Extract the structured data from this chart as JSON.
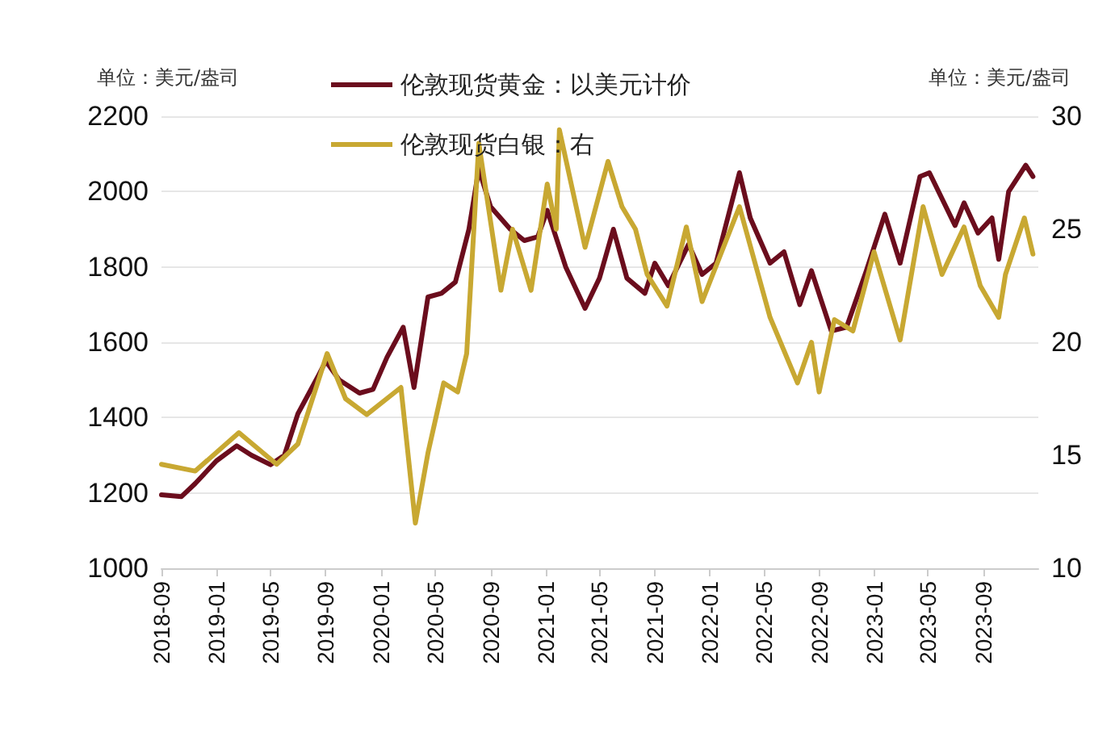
{
  "chart_data": {
    "type": "line",
    "ylabel": "单位：美元/盎司",
    "y2label": "单位：美元/盎司",
    "xlim": [
      "2018-09-01",
      "2024-01-01"
    ],
    "xticks": [
      {
        "value": "2018-09-01",
        "label": "2018-09"
      },
      {
        "value": "2019-01-01",
        "label": "2019-01"
      },
      {
        "value": "2019-05-01",
        "label": "2019-05"
      },
      {
        "value": "2019-09-01",
        "label": "2019-09"
      },
      {
        "value": "2020-01-01",
        "label": "2020-01"
      },
      {
        "value": "2020-05-01",
        "label": "2020-05"
      },
      {
        "value": "2020-09-01",
        "label": "2020-09"
      },
      {
        "value": "2021-01-01",
        "label": "2021-01"
      },
      {
        "value": "2021-05-01",
        "label": "2021-05"
      },
      {
        "value": "2021-09-01",
        "label": "2021-09"
      },
      {
        "value": "2022-01-01",
        "label": "2022-01"
      },
      {
        "value": "2022-05-01",
        "label": "2022-05"
      },
      {
        "value": "2022-09-01",
        "label": "2022-09"
      },
      {
        "value": "2023-01-01",
        "label": "2023-01"
      },
      {
        "value": "2023-05-01",
        "label": "2023-05"
      },
      {
        "value": "2023-09-01",
        "label": "2023-09"
      }
    ],
    "ylim": [
      1000,
      2200
    ],
    "yticks": [
      1000,
      1200,
      1400,
      1600,
      1800,
      2000,
      2200
    ],
    "y2lim": [
      10,
      30
    ],
    "y2ticks": [
      10,
      15,
      20,
      25,
      30
    ],
    "grid": "y",
    "legend": "top left",
    "marker": "none",
    "line_style": "solid",
    "series": [
      {
        "name": "伦敦现货黄金：以美元计价",
        "color": "#6b0d1d",
        "x": [
          "2018-09-01",
          "2018-10-15",
          "2018-11-15",
          "2019-01-01",
          "2019-02-15",
          "2019-03-20",
          "2019-05-01",
          "2019-06-01",
          "2019-07-01",
          "2019-08-15",
          "2019-09-01",
          "2019-10-01",
          "2019-11-15",
          "2019-12-15",
          "2020-01-15",
          "2020-02-20",
          "2020-03-15",
          "2020-04-15",
          "2020-05-15",
          "2020-06-15",
          "2020-07-15",
          "2020-08-06",
          "2020-09-01",
          "2020-10-15",
          "2020-11-15",
          "2020-12-15",
          "2021-01-05",
          "2021-02-15",
          "2021-03-30",
          "2021-05-01",
          "2021-06-01",
          "2021-07-01",
          "2021-08-10",
          "2021-09-01",
          "2021-10-01",
          "2021-11-15",
          "2021-12-15",
          "2022-01-15",
          "2022-03-08",
          "2022-04-01",
          "2022-05-15",
          "2022-06-15",
          "2022-07-20",
          "2022-08-15",
          "2022-09-28",
          "2022-11-01",
          "2022-12-15",
          "2023-01-25",
          "2023-02-28",
          "2023-04-13",
          "2023-05-04",
          "2023-06-30",
          "2023-07-20",
          "2023-08-20",
          "2023-09-20",
          "2023-10-05",
          "2023-10-27",
          "2023-12-04",
          "2023-12-20"
        ],
        "values": [
          1195,
          1190,
          1225,
          1285,
          1325,
          1300,
          1275,
          1300,
          1410,
          1510,
          1550,
          1500,
          1465,
          1475,
          1560,
          1640,
          1480,
          1720,
          1730,
          1760,
          1900,
          2060,
          1960,
          1900,
          1870,
          1880,
          1950,
          1800,
          1690,
          1770,
          1900,
          1770,
          1730,
          1810,
          1750,
          1860,
          1780,
          1810,
          2050,
          1930,
          1810,
          1840,
          1700,
          1790,
          1630,
          1640,
          1790,
          1940,
          1810,
          2040,
          2050,
          1910,
          1970,
          1890,
          1930,
          1820,
          2000,
          2070,
          2040
        ]
      },
      {
        "name": "伦敦现货白银：右",
        "color": "#c8a832",
        "axis": "y2",
        "x": [
          "2018-09-01",
          "2018-11-15",
          "2019-02-20",
          "2019-05-15",
          "2019-07-01",
          "2019-09-04",
          "2019-10-15",
          "2019-12-01",
          "2020-02-15",
          "2020-03-18",
          "2020-04-15",
          "2020-05-20",
          "2020-06-20",
          "2020-07-10",
          "2020-08-06",
          "2020-09-24",
          "2020-10-20",
          "2020-11-30",
          "2021-01-05",
          "2021-01-25",
          "2021-02-01",
          "2021-03-30",
          "2021-05-20",
          "2021-06-20",
          "2021-07-20",
          "2021-08-15",
          "2021-09-28",
          "2021-11-10",
          "2021-12-15",
          "2022-03-08",
          "2022-05-15",
          "2022-07-15",
          "2022-08-15",
          "2022-09-01",
          "2022-10-05",
          "2022-11-15",
          "2023-01-01",
          "2023-02-28",
          "2023-04-20",
          "2023-06-01",
          "2023-07-20",
          "2023-08-25",
          "2023-10-05",
          "2023-10-20",
          "2023-12-01",
          "2023-12-20"
        ],
        "values": [
          14.6,
          14.3,
          16.0,
          14.6,
          15.5,
          19.5,
          17.5,
          16.8,
          18.0,
          12.0,
          15.1,
          18.2,
          17.8,
          19.5,
          28.8,
          22.3,
          25.0,
          22.3,
          27.0,
          25.0,
          29.4,
          24.2,
          28.0,
          26.0,
          25.0,
          23.0,
          21.6,
          25.1,
          21.8,
          26.0,
          21.1,
          18.2,
          20.0,
          17.8,
          21.0,
          20.5,
          24.0,
          20.1,
          26.0,
          23.0,
          25.1,
          22.5,
          21.1,
          23.0,
          25.5,
          23.9
        ]
      }
    ]
  }
}
